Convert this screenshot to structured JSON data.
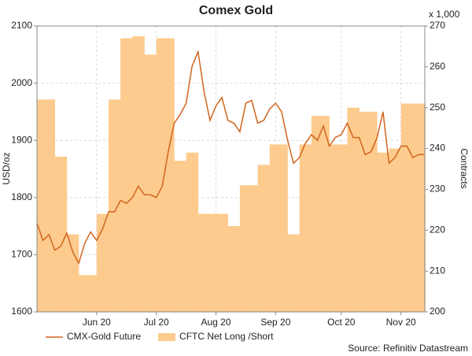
{
  "chart_data": {
    "type": "line",
    "title": "Comex Gold",
    "y_label": "USD/oz",
    "y2_label": "Contracts",
    "y2_unit": "x 1,000",
    "source": "Source: Refinitiv Datastream",
    "categories": [
      null,
      null,
      null,
      null,
      null,
      null,
      null,
      null,
      null,
      null,
      "Jun 20",
      null,
      null,
      null,
      null,
      null,
      null,
      null,
      null,
      null,
      "Jul 20",
      null,
      null,
      null,
      null,
      null,
      null,
      null,
      null,
      null,
      "Aug 20",
      null,
      null,
      null,
      null,
      null,
      null,
      null,
      null,
      null,
      "Sep 20",
      null,
      null,
      null,
      null,
      null,
      null,
      null,
      null,
      null,
      null,
      "Oct 20",
      null,
      null,
      null,
      null,
      null,
      null,
      null,
      null,
      null,
      "Nov 20",
      null,
      null,
      null,
      null
    ],
    "series": [
      {
        "name": "CFTC Net Long /Short",
        "type": "area",
        "axis": "y2",
        "color": "#fccb8d",
        "values": [
          252,
          252,
          252,
          238,
          238,
          219,
          219,
          209,
          209,
          209,
          224,
          224,
          252,
          252,
          267,
          267,
          267.5,
          267.5,
          263,
          263,
          267,
          267,
          267,
          237,
          237,
          239,
          239,
          224,
          224,
          224,
          224,
          224,
          221,
          221,
          231,
          231,
          231,
          236,
          236,
          241,
          241,
          241,
          219,
          219,
          241,
          241,
          248,
          248,
          248,
          241,
          241,
          241,
          250,
          250,
          249,
          249,
          249,
          239,
          239,
          240,
          240,
          251,
          251,
          251,
          251,
          251
        ]
      },
      {
        "name": "CMX-Gold Future",
        "type": "line",
        "color": "#d2641e",
        "values": [
          1755,
          1725,
          1735,
          1708,
          1715,
          1738,
          1705,
          1685,
          1720,
          1740,
          1725,
          1745,
          1775,
          1775,
          1795,
          1790,
          1800,
          1820,
          1805,
          1805,
          1800,
          1820,
          1880,
          1930,
          1945,
          1965,
          2030,
          2055,
          1985,
          1935,
          1960,
          1975,
          1935,
          1930,
          1915,
          1965,
          1970,
          1930,
          1935,
          1955,
          1965,
          1950,
          1900,
          1860,
          1870,
          1895,
          1910,
          1900,
          1925,
          1890,
          1905,
          1910,
          1930,
          1905,
          1905,
          1875,
          1880,
          1905,
          1950,
          1860,
          1870,
          1890,
          1890,
          1870,
          1875,
          1875
        ]
      }
    ],
    "ylim": [
      1600,
      2100
    ],
    "yticks": [
      1600,
      1700,
      1800,
      1900,
      2000,
      2100
    ],
    "y2lim": [
      200,
      270
    ],
    "y2ticks": [
      200,
      210,
      220,
      230,
      240,
      250,
      260,
      270
    ],
    "grid": true,
    "legend": "bottom-left"
  }
}
